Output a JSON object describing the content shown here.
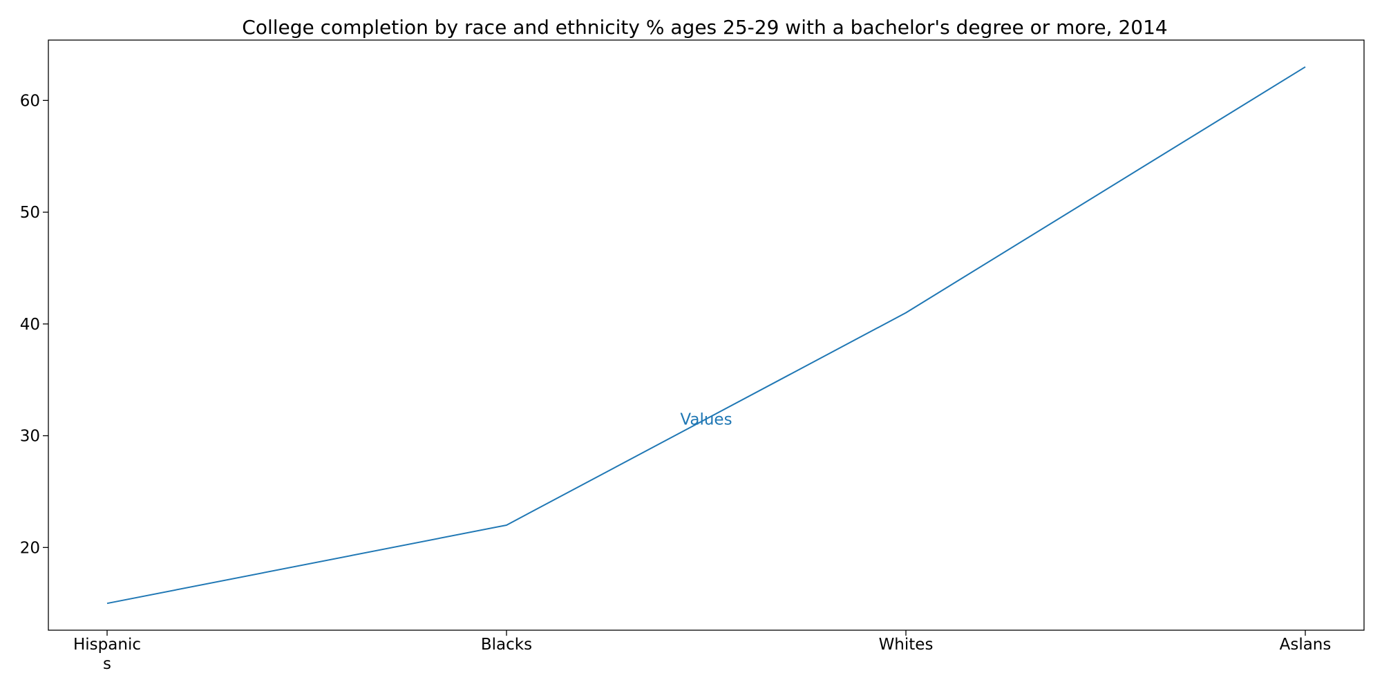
{
  "chart_data": {
    "type": "line",
    "title": "College completion by race and ethnicity % ages 25-29 with a bachelor's degree or more, 2014",
    "xlabel": "",
    "ylabel": "",
    "categories": [
      [
        "Hispanic",
        "s"
      ],
      [
        "Blacks"
      ],
      [
        "Whites"
      ],
      [
        "Aslans"
      ]
    ],
    "series": [
      {
        "name": "Values",
        "values": [
          15,
          22,
          41,
          63
        ],
        "color": "#1f77b4"
      }
    ],
    "yticks": [
      20,
      30,
      40,
      50,
      60
    ],
    "ylim": [
      12.6,
      65.4
    ],
    "grid": false,
    "legend": "none",
    "annotation": {
      "text": "Values",
      "x_position": 1.5,
      "y": 31.5,
      "color": "#1f77b4"
    }
  }
}
